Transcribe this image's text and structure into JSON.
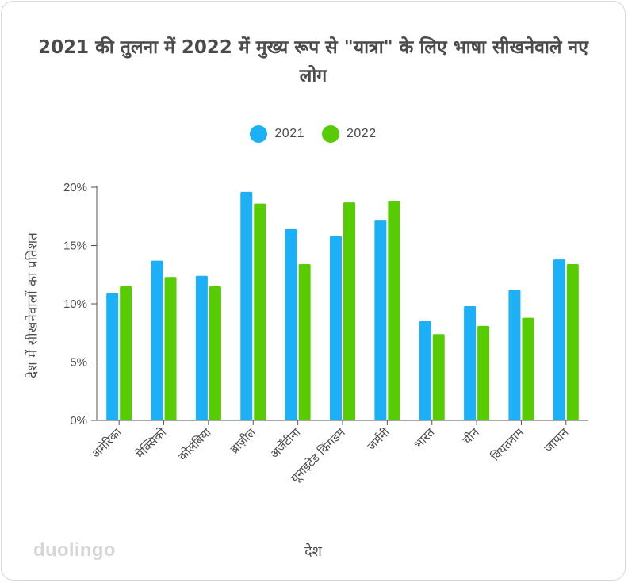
{
  "chart_data": {
    "type": "bar",
    "title": "2021 की तुलना में 2022 में मुख्य रूप से \"यात्रा\" के लिए भाषा सीखनेवाले नए लोग",
    "xlabel": "देश",
    "ylabel": "देश में सीखनेवालों का प्रतिशत",
    "categories": [
      "अमेरिका",
      "मेक्सिको",
      "कोलंबिया",
      "ब्राज़ील",
      "अर्जेंटीना",
      "यूनाइटेड किंगडम",
      "जर्मनी",
      "भारत",
      "चीन",
      "वियतनाम",
      "जापान"
    ],
    "series": [
      {
        "name": "2021",
        "color": "#1cb0f6",
        "values": [
          10.9,
          13.7,
          12.4,
          19.6,
          16.4,
          15.8,
          17.2,
          8.5,
          9.8,
          11.2,
          13.8
        ]
      },
      {
        "name": "2022",
        "color": "#58cc02",
        "values": [
          11.5,
          12.3,
          11.5,
          18.6,
          13.4,
          18.7,
          18.8,
          7.4,
          8.1,
          8.8,
          13.4
        ]
      }
    ],
    "ylim": [
      0,
      20
    ],
    "yticks": [
      "0%",
      "5%",
      "10%",
      "15%",
      "20%"
    ],
    "ytick_values": [
      0,
      5,
      10,
      15,
      20
    ],
    "grid": false,
    "legend_position": "top-center"
  },
  "brand": {
    "logo_text": "duolingo"
  }
}
